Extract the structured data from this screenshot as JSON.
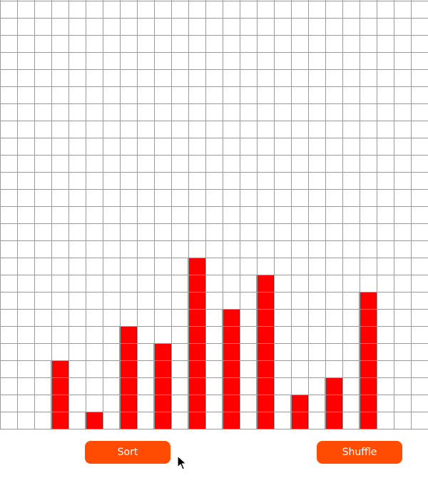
{
  "controls": {
    "sort_label": "Sort",
    "shuffle_label": "Shuffle"
  },
  "colors": {
    "bar": "#ff0000",
    "bar_border": "#b00000",
    "grid_line": "#9a9a9a",
    "button": "#ff4c00",
    "background": "#ffffff"
  },
  "chart_data": {
    "type": "bar",
    "grid": true,
    "values": [
      4,
      1,
      6,
      5,
      10,
      7,
      9,
      2,
      3,
      8
    ],
    "grid_units": 25
  },
  "cursor": {
    "icon": "arrow-pointer-icon"
  }
}
